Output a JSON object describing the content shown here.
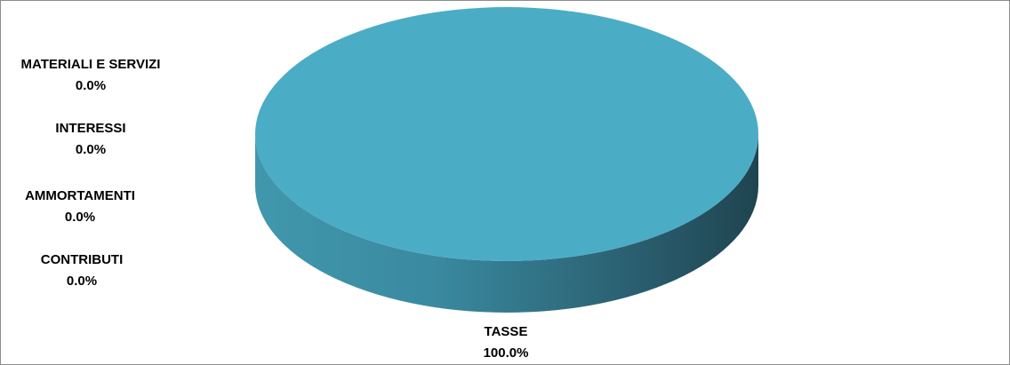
{
  "chart_data": {
    "type": "pie",
    "title": "",
    "style": "3d",
    "colors": {
      "primary": "#4bacc6",
      "side_light": "#4197ad",
      "side_dark": "#1f4450"
    },
    "slices": [
      {
        "label": "TASSE",
        "value": 100.0,
        "display": "100.0%"
      },
      {
        "label": "MATERIALI E SERVIZI",
        "value": 0.0,
        "display": "0.0%"
      },
      {
        "label": "INTERESSI",
        "value": 0.0,
        "display": "0.0%"
      },
      {
        "label": "AMMORTAMENTI",
        "value": 0.0,
        "display": "0.0%"
      },
      {
        "label": "CONTRIBUTI",
        "value": 0.0,
        "display": "0.0%"
      }
    ]
  }
}
